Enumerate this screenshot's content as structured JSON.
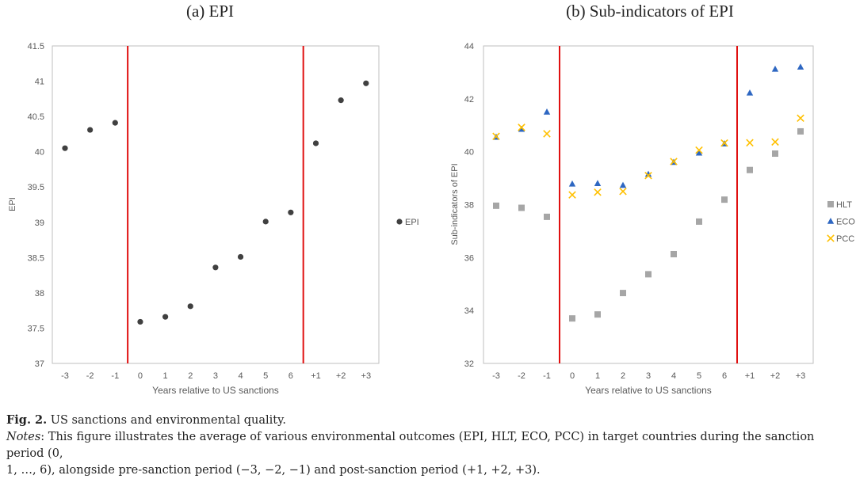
{
  "panels": {
    "left_title": "(a) EPI",
    "right_title": "(b) Sub-indicators of EPI"
  },
  "caption": {
    "fig_label": "Fig. 2.",
    "fig_text": "US sanctions and environmental quality.",
    "notes_label": "Notes",
    "notes_line1": ": This figure illustrates the average of various environmental outcomes (EPI, HLT, ECO, PCC) in target countries during the sanction period (0,",
    "notes_line2": "1, …, 6), alongside pre-sanction period (−3, −2, −1) and post-sanction period (+1, +2, +3)."
  },
  "colors": {
    "axis_line": "#bfbfbf",
    "sanction_line": "#e01010",
    "EPI": "#404040",
    "HLT": "#a6a6a6",
    "ECO": "#2e67c2",
    "PCC": "#ffc000"
  },
  "chart_data": [
    {
      "type": "scatter",
      "title": "(a) EPI",
      "xlabel": "Years relative to US sanctions",
      "ylabel": "EPI",
      "categories": [
        "-3",
        "-2",
        "-1",
        "0",
        "1",
        "2",
        "3",
        "4",
        "5",
        "6",
        "+1",
        "+2",
        "+3"
      ],
      "ylim": [
        37,
        41.5
      ],
      "yticks": [
        37,
        37.5,
        38,
        38.5,
        39,
        39.5,
        40,
        40.5,
        41,
        41.5
      ],
      "ytick_labels": [
        "37",
        "37.5",
        "38",
        "38.5",
        "39",
        "39.5",
        "40",
        "40.5",
        "41",
        "41.5"
      ],
      "vlines_between": [
        [
          2,
          3
        ],
        [
          9,
          10
        ]
      ],
      "legend_position": "right",
      "grid": false,
      "series": [
        {
          "name": "EPI",
          "marker": "circle",
          "values": [
            40.05,
            40.31,
            40.41,
            37.59,
            37.66,
            37.81,
            38.36,
            38.51,
            39.01,
            39.14,
            40.12,
            40.73,
            40.97
          ]
        }
      ]
    },
    {
      "type": "scatter",
      "title": "(b) Sub-indicators of EPI",
      "xlabel": "Years relative to US sanctions",
      "ylabel": "Sub-indicators of EPI",
      "categories": [
        "-3",
        "-2",
        "-1",
        "0",
        "1",
        "2",
        "3",
        "4",
        "5",
        "6",
        "+1",
        "+2",
        "+3"
      ],
      "ylim": [
        32,
        44
      ],
      "yticks": [
        32,
        34,
        36,
        38,
        40,
        42,
        44
      ],
      "ytick_labels": [
        "32",
        "34",
        "36",
        "38",
        "40",
        "42",
        "44"
      ],
      "vlines_between": [
        [
          2,
          3
        ],
        [
          9,
          10
        ]
      ],
      "legend_position": "right",
      "grid": false,
      "series": [
        {
          "name": "HLT",
          "marker": "square",
          "values": [
            37.96,
            37.88,
            37.54,
            33.7,
            33.85,
            34.66,
            35.37,
            36.13,
            37.36,
            38.19,
            39.31,
            39.93,
            40.77
          ]
        },
        {
          "name": "ECO",
          "marker": "triangle",
          "values": [
            40.55,
            40.85,
            41.5,
            38.78,
            38.8,
            38.73,
            39.15,
            39.6,
            39.95,
            40.3,
            42.22,
            43.12,
            43.2
          ]
        },
        {
          "name": "PCC",
          "marker": "x",
          "values": [
            40.58,
            40.92,
            40.68,
            38.37,
            38.47,
            38.5,
            39.1,
            39.63,
            40.06,
            40.33,
            40.34,
            40.37,
            41.27
          ]
        }
      ]
    }
  ]
}
